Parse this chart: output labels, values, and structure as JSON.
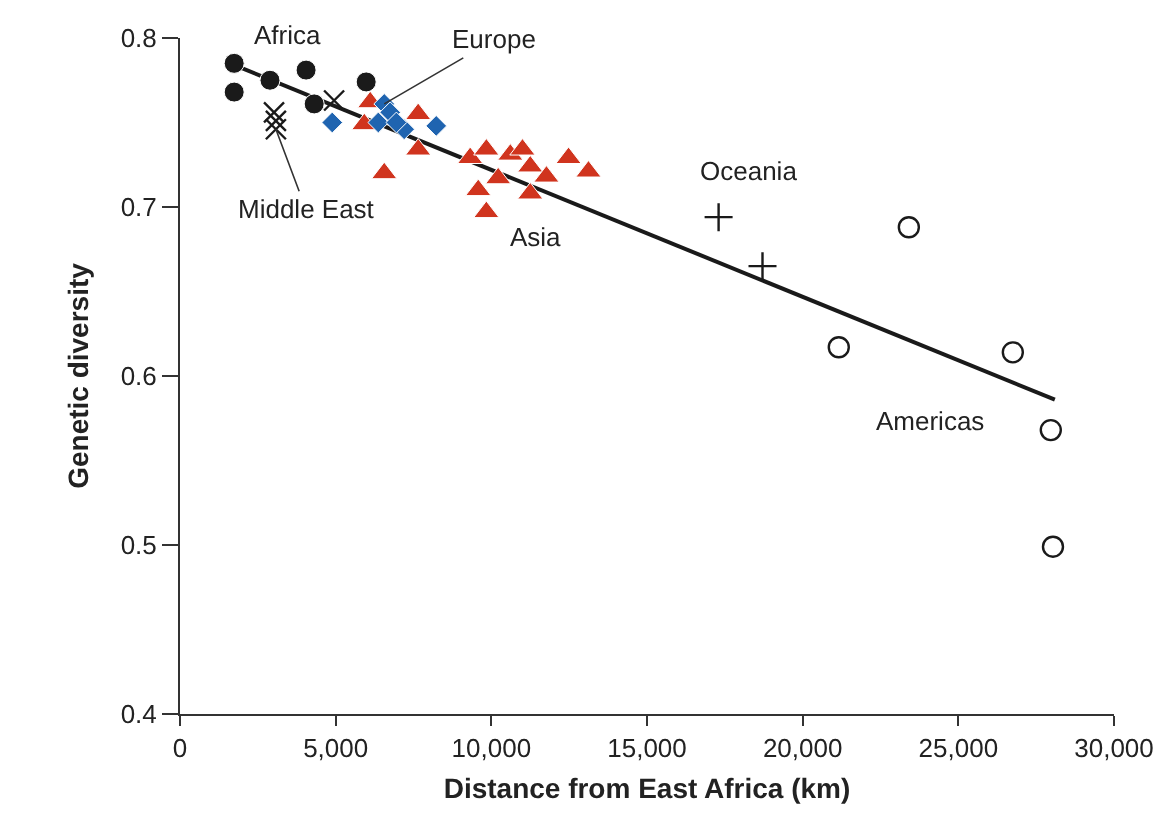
{
  "chart_data": {
    "type": "scatter",
    "xlabel": "Distance from East Africa (km)",
    "ylabel": "Genetic diversity",
    "xlim": [
      0,
      30000
    ],
    "ylim": [
      0.4,
      0.8
    ],
    "xticks": [
      0,
      {
        "value": 5000,
        "label": "5,000"
      },
      {
        "value": 10000,
        "label": "10,000"
      },
      {
        "value": 15000,
        "label": "15,000"
      },
      {
        "value": 20000,
        "label": "20,000"
      },
      {
        "value": 25000,
        "label": "25,000"
      },
      {
        "value": 30000,
        "label": "30,000"
      }
    ],
    "yticks": [
      0.4,
      0.5,
      0.6,
      0.7,
      0.8
    ],
    "grid": false,
    "legend": false,
    "series": [
      {
        "name": "Africa",
        "color": "#1a1a1a",
        "marker": "circle",
        "x": [
          1740,
          1740,
          2890,
          4050,
          4310,
          5980
        ],
        "values": [
          0.785,
          0.768,
          0.775,
          0.781,
          0.761,
          0.774
        ]
      },
      {
        "name": "Middle East",
        "color": "#1a1a1a",
        "marker": "cross",
        "x": [
          3020,
          3080,
          3080,
          4950
        ],
        "values": [
          0.756,
          0.751,
          0.746,
          0.763
        ]
      },
      {
        "name": "Europe",
        "color": "#1f64b0",
        "marker": "diamond",
        "x": [
          4890,
          6560,
          6750,
          6370,
          7200,
          8230,
          6950
        ],
        "values": [
          0.75,
          0.761,
          0.756,
          0.75,
          0.746,
          0.748,
          0.75
        ]
      },
      {
        "name": "Asia",
        "color": "#d0341e",
        "marker": "triangle",
        "x": [
          6110,
          5920,
          6560,
          7650,
          7650,
          9320,
          9840,
          10610,
          11000,
          11250,
          9580,
          10220,
          9840,
          11250,
          11770,
          12480,
          13120
        ],
        "values": [
          0.762,
          0.749,
          0.72,
          0.755,
          0.734,
          0.729,
          0.734,
          0.731,
          0.734,
          0.724,
          0.71,
          0.717,
          0.697,
          0.708,
          0.718,
          0.729,
          0.721
        ]
      },
      {
        "name": "Oceania",
        "color": "#1a1a1a",
        "marker": "plus",
        "x": [
          17300,
          18710
        ],
        "values": [
          0.694,
          0.665
        ]
      },
      {
        "name": "Americas",
        "color": "#1a1a1a",
        "marker": "open-circle",
        "x": [
          23410,
          21160,
          26750,
          27970,
          28040
        ],
        "values": [
          0.688,
          0.617,
          0.614,
          0.568,
          0.499
        ]
      },
      {
        "type": "line",
        "color": "#1a1a1a",
        "marker": "none",
        "x": [
          1610,
          28100
        ],
        "values": [
          0.785,
          0.586
        ]
      }
    ]
  }
}
